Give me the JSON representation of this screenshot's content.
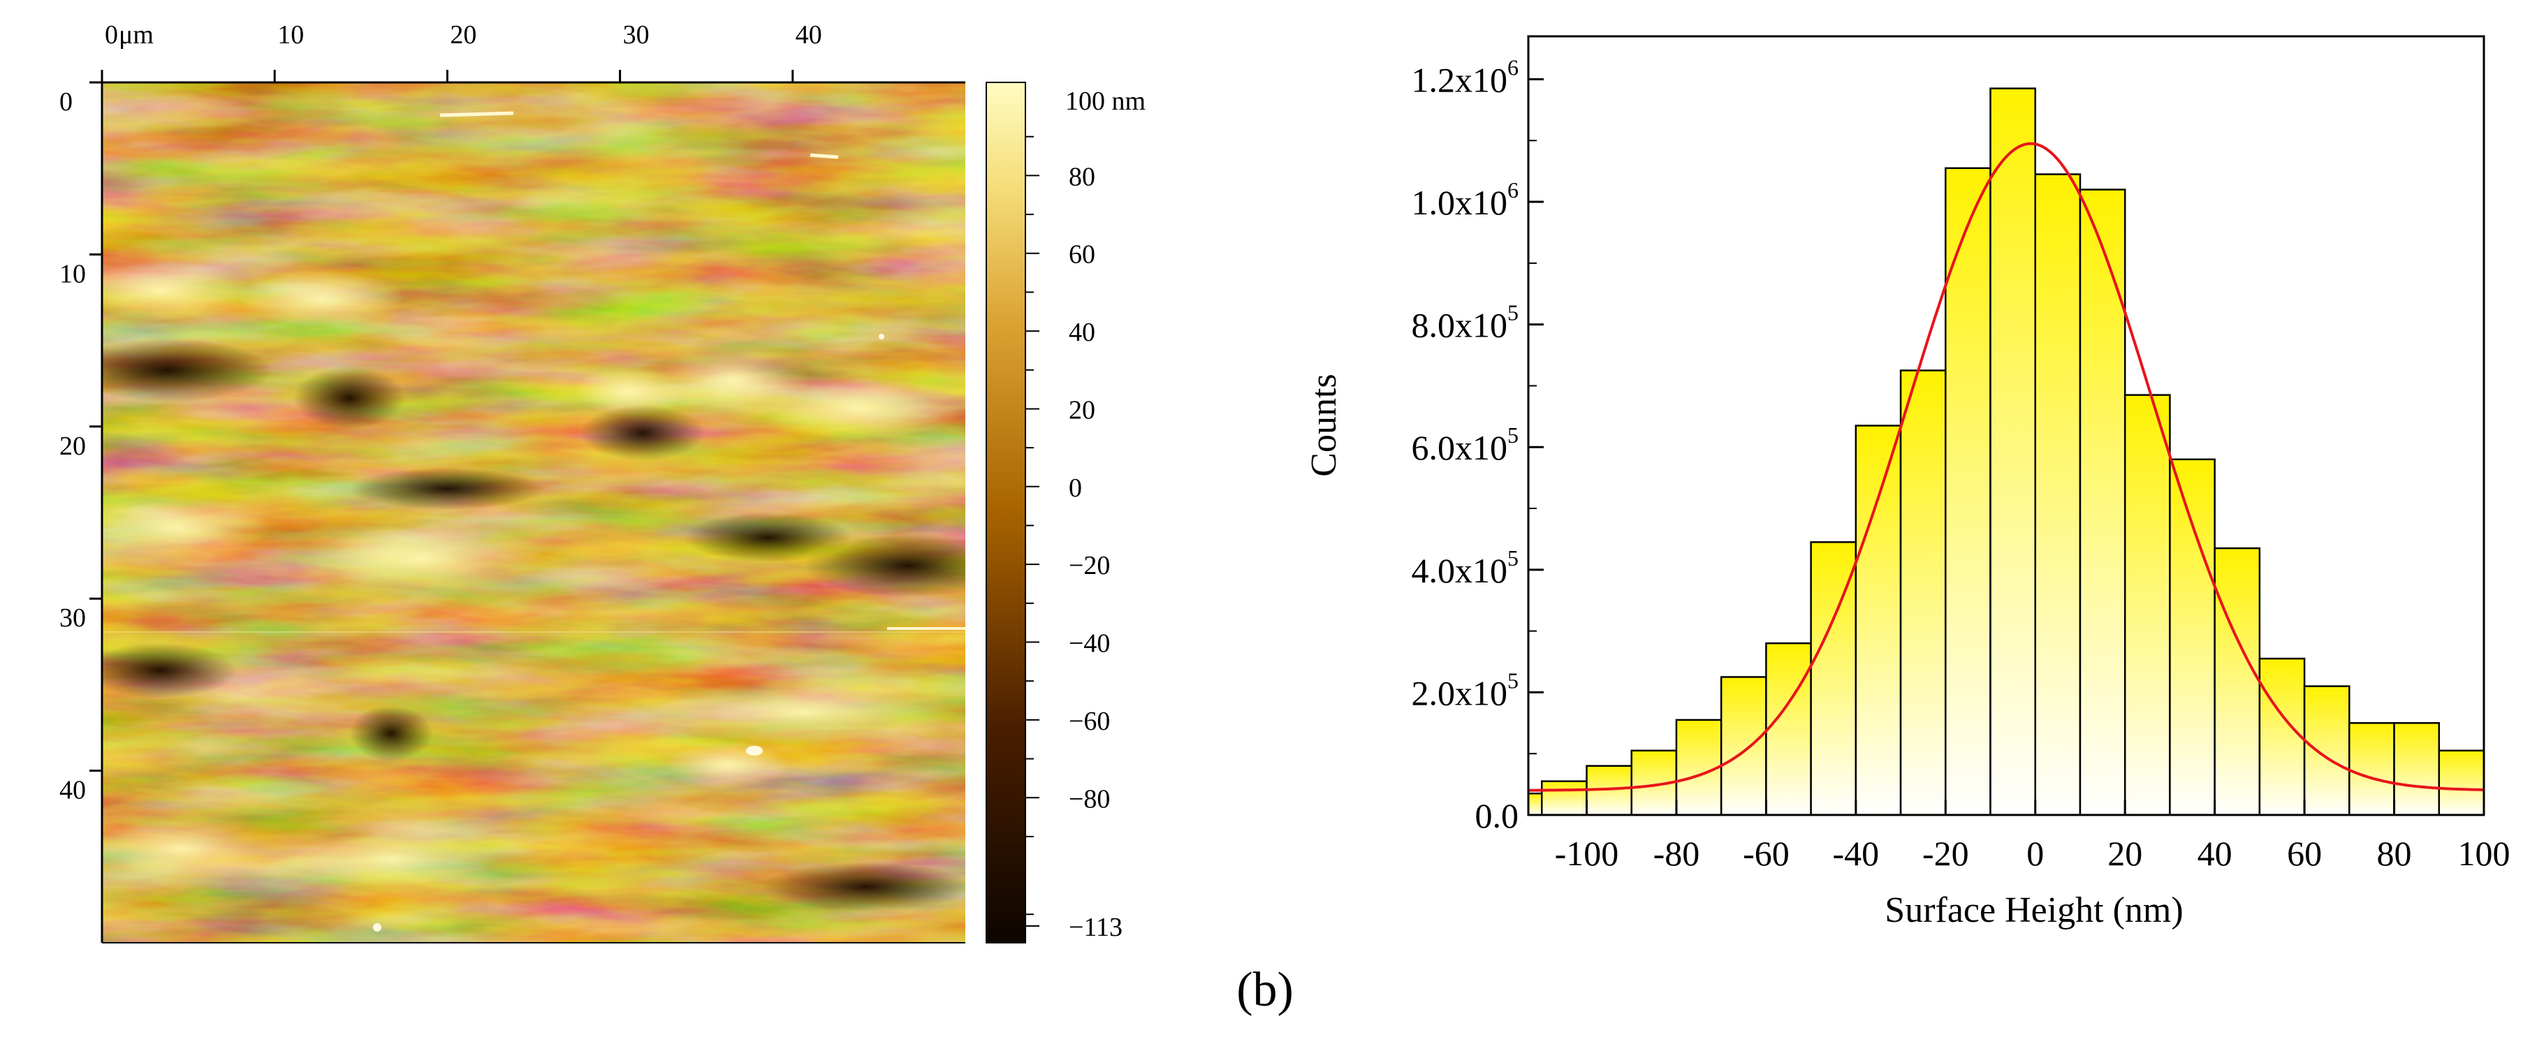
{
  "panel_label": "(b)",
  "afm_image": {
    "x_unit": "μm",
    "x_ticks": [
      "0",
      "10",
      "20",
      "30",
      "40"
    ],
    "y_ticks": [
      "0",
      "10",
      "20",
      "30",
      "40"
    ],
    "x_range_um": [
      0,
      50
    ],
    "y_range_um": [
      0,
      50
    ],
    "colorbar": {
      "unit": "nm",
      "top_label": "100 nm",
      "labels": [
        "80",
        "60",
        "40",
        "20",
        "0",
        "−20",
        "−40",
        "−60",
        "−80",
        "−113"
      ],
      "min": -113,
      "max": 100
    }
  },
  "chart_data": {
    "type": "bar",
    "xlabel": "Surface Height (nm)",
    "ylabel": "Counts",
    "xlim": [
      -113,
      100
    ],
    "ylim": [
      0,
      1270000
    ],
    "bin_width": 10,
    "x_tick_values": [
      -100,
      -80,
      -60,
      -40,
      -20,
      0,
      20,
      40,
      60,
      80,
      100
    ],
    "x_tick_labels": [
      "-100",
      "-80",
      "-60",
      "-40",
      "-20",
      "0",
      "20",
      "40",
      "60",
      "80",
      "100"
    ],
    "y_tick_values": [
      0,
      200000,
      400000,
      600000,
      800000,
      1000000,
      1200000
    ],
    "y_tick_labels": [
      {
        "mant": "0.0",
        "exp": ""
      },
      {
        "mant": "2.0x10",
        "exp": "5"
      },
      {
        "mant": "4.0x10",
        "exp": "5"
      },
      {
        "mant": "6.0x10",
        "exp": "5"
      },
      {
        "mant": "8.0x10",
        "exp": "5"
      },
      {
        "mant": "1.0x10",
        "exp": "6"
      },
      {
        "mant": "1.2x10",
        "exp": "6"
      }
    ],
    "bins": [
      {
        "x0": -113,
        "x1": -110,
        "count": 35000
      },
      {
        "x0": -110,
        "x1": -100,
        "count": 55000
      },
      {
        "x0": -100,
        "x1": -90,
        "count": 80000
      },
      {
        "x0": -90,
        "x1": -80,
        "count": 105000
      },
      {
        "x0": -80,
        "x1": -70,
        "count": 155000
      },
      {
        "x0": -70,
        "x1": -60,
        "count": 225000
      },
      {
        "x0": -60,
        "x1": -50,
        "count": 280000
      },
      {
        "x0": -50,
        "x1": -40,
        "count": 445000
      },
      {
        "x0": -40,
        "x1": -30,
        "count": 635000
      },
      {
        "x0": -30,
        "x1": -20,
        "count": 725000
      },
      {
        "x0": -20,
        "x1": -10,
        "count": 1055000
      },
      {
        "x0": -10,
        "x1": 0,
        "count": 1185000
      },
      {
        "x0": 0,
        "x1": 10,
        "count": 1045000
      },
      {
        "x0": 10,
        "x1": 20,
        "count": 1020000
      },
      {
        "x0": 20,
        "x1": 30,
        "count": 685000
      },
      {
        "x0": 30,
        "x1": 40,
        "count": 580000
      },
      {
        "x0": 40,
        "x1": 50,
        "count": 435000
      },
      {
        "x0": 50,
        "x1": 60,
        "count": 255000
      },
      {
        "x0": 60,
        "x1": 70,
        "count": 210000
      },
      {
        "x0": 70,
        "x1": 80,
        "count": 150000
      },
      {
        "x0": 80,
        "x1": 90,
        "count": 150000
      },
      {
        "x0": 90,
        "x1": 100,
        "count": 105000
      }
    ],
    "fit": {
      "name": "Gaussian fit",
      "type": "gaussian",
      "baseline": 40000,
      "amplitude": 1055000,
      "center": -1,
      "sigma": 27,
      "color": "#e8151c"
    },
    "bar_fill_top": "#fff200",
    "bar_fill_bottom": "#ffffff"
  }
}
